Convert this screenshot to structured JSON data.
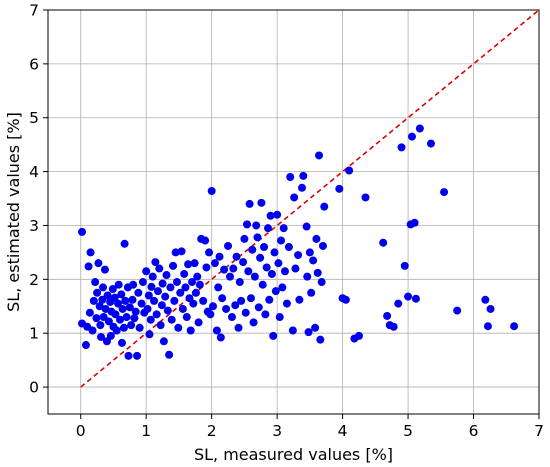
{
  "chart_data": {
    "type": "scatter",
    "xlabel": "SL, measured values [%]",
    "ylabel": "SL, estimated values [%]",
    "xlim": [
      -0.5,
      7
    ],
    "ylim": [
      -0.5,
      7
    ],
    "xticks": [
      "0",
      "1",
      "2",
      "3",
      "4",
      "5",
      "6",
      "7"
    ],
    "yticks": [
      "0",
      "1",
      "2",
      "3",
      "4",
      "5",
      "6",
      "7"
    ],
    "grid": true,
    "point_color": "#0000ee",
    "reference_line": {
      "style": "dashed",
      "color": "#dd0000",
      "from": [
        0,
        0
      ],
      "to": [
        7,
        7
      ]
    },
    "points": [
      [
        0.02,
        2.88
      ],
      [
        0.02,
        1.18
      ],
      [
        0.08,
        0.78
      ],
      [
        0.1,
        1.12
      ],
      [
        0.12,
        2.24
      ],
      [
        0.14,
        1.38
      ],
      [
        0.15,
        2.5
      ],
      [
        0.18,
        1.05
      ],
      [
        0.2,
        1.6
      ],
      [
        0.22,
        1.95
      ],
      [
        0.24,
        1.28
      ],
      [
        0.25,
        1.75
      ],
      [
        0.27,
        2.3
      ],
      [
        0.29,
        1.5
      ],
      [
        0.3,
        1.15
      ],
      [
        0.31,
        0.93
      ],
      [
        0.33,
        1.62
      ],
      [
        0.34,
        1.85
      ],
      [
        0.35,
        1.3
      ],
      [
        0.37,
        2.18
      ],
      [
        0.38,
        1.45
      ],
      [
        0.4,
        0.85
      ],
      [
        0.41,
        1.7
      ],
      [
        0.43,
        1.22
      ],
      [
        0.45,
        1.58
      ],
      [
        0.46,
        0.95
      ],
      [
        0.47,
        1.4
      ],
      [
        0.49,
        1.82
      ],
      [
        0.5,
        1.12
      ],
      [
        0.52,
        1.66
      ],
      [
        0.53,
        1.35
      ],
      [
        0.55,
        1.05
      ],
      [
        0.57,
        1.55
      ],
      [
        0.58,
        1.9
      ],
      [
        0.6,
        1.25
      ],
      [
        0.62,
        1.72
      ],
      [
        0.63,
        0.82
      ],
      [
        0.64,
        1.45
      ],
      [
        0.66,
        1.1
      ],
      [
        0.67,
        2.66
      ],
      [
        0.68,
        1.6
      ],
      [
        0.7,
        1.3
      ],
      [
        0.72,
        1.85
      ],
      [
        0.73,
        0.58
      ],
      [
        0.75,
        1.48
      ],
      [
        0.77,
        1.15
      ],
      [
        0.79,
        1.62
      ],
      [
        0.8,
        1.9
      ],
      [
        0.82,
        1.28
      ],
      [
        0.84,
        1.4
      ],
      [
        0.86,
        0.58
      ],
      [
        0.88,
        1.75
      ],
      [
        0.9,
        1.1
      ],
      [
        0.93,
        1.55
      ],
      [
        0.95,
        1.95
      ],
      [
        0.97,
        1.38
      ],
      [
        1.0,
        2.15
      ],
      [
        1.02,
        1.45
      ],
      [
        1.04,
        1.7
      ],
      [
        1.05,
        0.98
      ],
      [
        1.07,
        1.25
      ],
      [
        1.08,
        1.86
      ],
      [
        1.1,
        2.05
      ],
      [
        1.12,
        1.6
      ],
      [
        1.14,
        2.32
      ],
      [
        1.16,
        1.35
      ],
      [
        1.18,
        1.78
      ],
      [
        1.2,
        2.2
      ],
      [
        1.22,
        1.15
      ],
      [
        1.24,
        1.52
      ],
      [
        1.25,
        1.92
      ],
      [
        1.27,
        0.85
      ],
      [
        1.29,
        1.68
      ],
      [
        1.31,
        2.08
      ],
      [
        1.33,
        1.42
      ],
      [
        1.35,
        0.6
      ],
      [
        1.37,
        1.85
      ],
      [
        1.39,
        1.25
      ],
      [
        1.41,
        2.25
      ],
      [
        1.43,
        1.6
      ],
      [
        1.45,
        2.5
      ],
      [
        1.47,
        1.95
      ],
      [
        1.49,
        1.1
      ],
      [
        1.52,
        1.75
      ],
      [
        1.54,
        2.52
      ],
      [
        1.56,
        1.45
      ],
      [
        1.58,
        2.1
      ],
      [
        1.6,
        1.85
      ],
      [
        1.62,
        1.3
      ],
      [
        1.64,
        2.28
      ],
      [
        1.66,
        1.65
      ],
      [
        1.68,
        1.05
      ],
      [
        1.7,
        1.95
      ],
      [
        1.72,
        1.55
      ],
      [
        1.74,
        2.3
      ],
      [
        1.76,
        1.75
      ],
      [
        1.78,
        2.05
      ],
      [
        1.8,
        1.2
      ],
      [
        1.82,
        1.9
      ],
      [
        1.84,
        2.75
      ],
      [
        1.87,
        1.6
      ],
      [
        1.9,
        2.72
      ],
      [
        1.92,
        2.22
      ],
      [
        1.94,
        1.4
      ],
      [
        1.96,
        2.5
      ],
      [
        1.98,
        1.35
      ],
      [
        2.0,
        3.64
      ],
      [
        2.02,
        1.5
      ],
      [
        2.05,
        2.3
      ],
      [
        2.08,
        1.05
      ],
      [
        2.1,
        1.85
      ],
      [
        2.12,
        2.42
      ],
      [
        2.14,
        0.92
      ],
      [
        2.16,
        1.65
      ],
      [
        2.19,
        2.18
      ],
      [
        2.22,
        1.45
      ],
      [
        2.25,
        2.62
      ],
      [
        2.28,
        2.05
      ],
      [
        2.31,
        1.3
      ],
      [
        2.33,
        2.2
      ],
      [
        2.36,
        1.52
      ],
      [
        2.38,
        2.42
      ],
      [
        2.41,
        1.1
      ],
      [
        2.43,
        1.95
      ],
      [
        2.45,
        1.6
      ],
      [
        2.48,
        2.32
      ],
      [
        2.5,
        2.75
      ],
      [
        2.52,
        1.38
      ],
      [
        2.54,
        3.02
      ],
      [
        2.56,
        2.15
      ],
      [
        2.58,
        3.4
      ],
      [
        2.6,
        1.65
      ],
      [
        2.62,
        2.55
      ],
      [
        2.64,
        1.2
      ],
      [
        2.66,
        2.05
      ],
      [
        2.68,
        3.0
      ],
      [
        2.7,
        2.78
      ],
      [
        2.72,
        1.48
      ],
      [
        2.74,
        2.4
      ],
      [
        2.76,
        3.42
      ],
      [
        2.78,
        1.9
      ],
      [
        2.8,
        2.6
      ],
      [
        2.82,
        1.35
      ],
      [
        2.84,
        2.22
      ],
      [
        2.86,
        2.95
      ],
      [
        2.88,
        1.62
      ],
      [
        2.9,
        3.18
      ],
      [
        2.92,
        2.1
      ],
      [
        2.94,
        0.95
      ],
      [
        2.96,
        2.5
      ],
      [
        2.98,
        1.78
      ],
      [
        3.0,
        3.2
      ],
      [
        3.02,
        2.3
      ],
      [
        3.04,
        1.3
      ],
      [
        3.06,
        2.72
      ],
      [
        3.08,
        1.85
      ],
      [
        3.1,
        2.95
      ],
      [
        3.12,
        2.15
      ],
      [
        3.15,
        1.55
      ],
      [
        3.18,
        2.6
      ],
      [
        3.2,
        3.9
      ],
      [
        3.24,
        1.05
      ],
      [
        3.26,
        3.52
      ],
      [
        3.28,
        2.2
      ],
      [
        3.32,
        2.45
      ],
      [
        3.34,
        1.62
      ],
      [
        3.38,
        3.7
      ],
      [
        3.4,
        3.92
      ],
      [
        3.45,
        2.98
      ],
      [
        3.46,
        2.05
      ],
      [
        3.48,
        1.02
      ],
      [
        3.5,
        2.5
      ],
      [
        3.52,
        1.75
      ],
      [
        3.55,
        2.35
      ],
      [
        3.58,
        1.1
      ],
      [
        3.6,
        2.75
      ],
      [
        3.62,
        2.12
      ],
      [
        3.64,
        4.3
      ],
      [
        3.66,
        0.88
      ],
      [
        3.68,
        1.95
      ],
      [
        3.7,
        2.62
      ],
      [
        3.72,
        3.35
      ],
      [
        3.95,
        3.68
      ],
      [
        4.0,
        1.65
      ],
      [
        4.05,
        1.62
      ],
      [
        4.1,
        4.02
      ],
      [
        4.18,
        0.9
      ],
      [
        4.25,
        0.95
      ],
      [
        4.35,
        3.52
      ],
      [
        4.62,
        2.68
      ],
      [
        4.68,
        1.32
      ],
      [
        4.72,
        1.15
      ],
      [
        4.78,
        1.12
      ],
      [
        4.85,
        1.55
      ],
      [
        4.9,
        4.45
      ],
      [
        4.95,
        2.25
      ],
      [
        5.0,
        1.68
      ],
      [
        5.04,
        3.02
      ],
      [
        5.06,
        4.65
      ],
      [
        5.1,
        3.05
      ],
      [
        5.12,
        1.64
      ],
      [
        5.18,
        4.8
      ],
      [
        5.35,
        4.52
      ],
      [
        5.55,
        3.62
      ],
      [
        5.75,
        1.42
      ],
      [
        6.18,
        1.62
      ],
      [
        6.22,
        1.13
      ],
      [
        6.26,
        1.45
      ],
      [
        6.62,
        1.13
      ]
    ]
  }
}
